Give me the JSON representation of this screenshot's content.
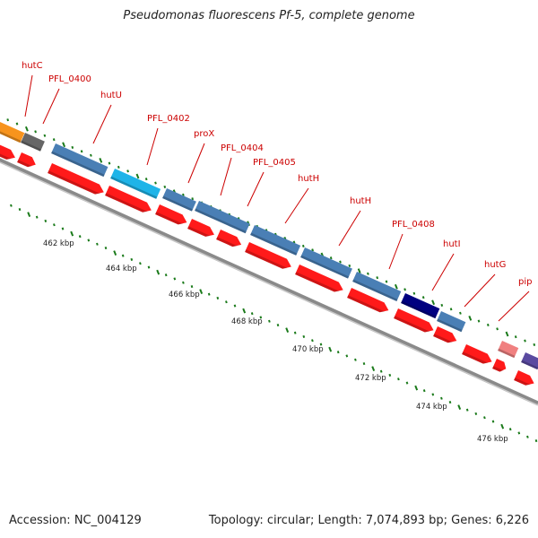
{
  "title": "Pseudomonas fluorescens Pf-5, complete genome",
  "footer": {
    "accession": "Accession: NC_004129",
    "summary": "Topology: circular; Length: 7,074,893 bp; Genes: 6,226"
  },
  "colors": {
    "background": "#ffffff",
    "gene_label": "#cc0000",
    "tick": "#1a7a1a",
    "cds_arrow": "#ff1a1a",
    "backbone": "#8a8a8a"
  },
  "gene_labels": [
    "hutC",
    "PFL_0400",
    "hutU",
    "PFL_0402",
    "proX",
    "PFL_0404",
    "PFL_0405",
    "hutH",
    "hutH",
    "PFL_0408",
    "hutI",
    "hutG",
    "pip"
  ],
  "scale": [
    "462 kbp",
    "464 kbp",
    "466 kbp",
    "468 kbp",
    "470 kbp",
    "472 kbp",
    "474 kbp",
    "476 kbp"
  ],
  "feature_colors": [
    "#f7941d",
    "#666666",
    "#4a7fb5",
    "#1eb4e8",
    "#4a7fb5",
    "#4a7fb5",
    "#4a7fb5",
    "#4a7fb5",
    "#4a7fb5",
    "#000080",
    "#4a7fb5",
    "#f08080",
    "#5a4aa0"
  ]
}
